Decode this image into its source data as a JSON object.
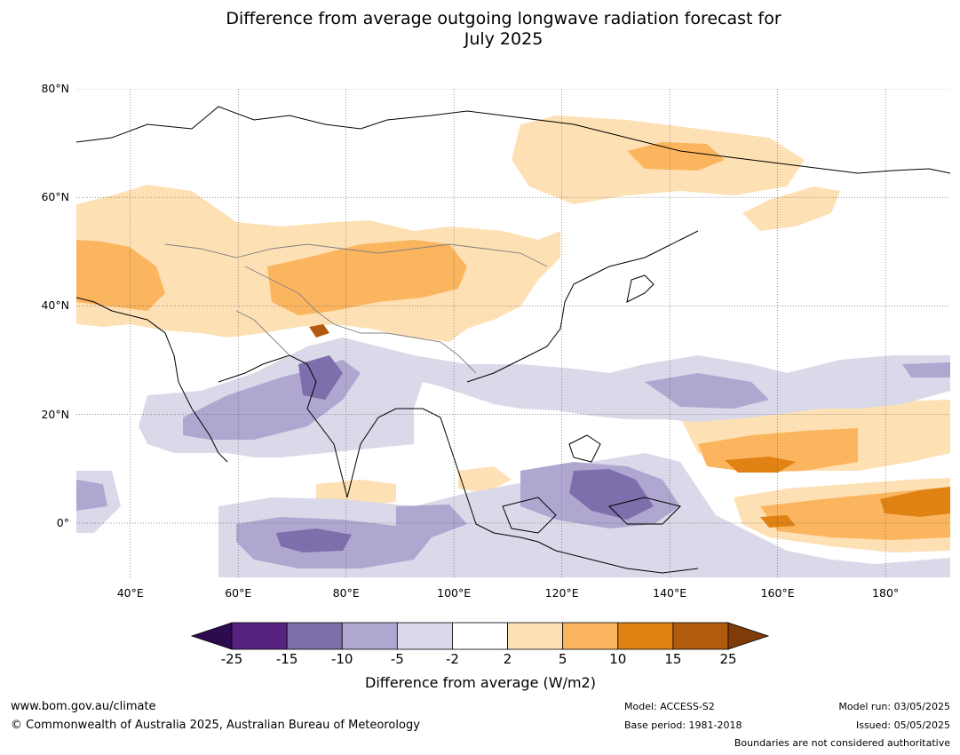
{
  "title": {
    "line1": "Difference from average outgoing longwave radiation forecast for",
    "line2": "July 2025"
  },
  "map": {
    "lat_labels": [
      "80°N",
      "60°N",
      "40°N",
      "20°N",
      "0°"
    ],
    "lon_labels": [
      "40°E",
      "60°E",
      "80°E",
      "100°E",
      "120°E",
      "140°E",
      "160°E",
      "180°"
    ],
    "extent": {
      "lon": [
        30,
        192
      ],
      "lat": [
        -10,
        80
      ]
    }
  },
  "colorbar": {
    "ticks": [
      "-25",
      "-15",
      "-10",
      "-5",
      "-2",
      "2",
      "5",
      "10",
      "15",
      "25"
    ],
    "colors": [
      "#2d0b4e",
      "#572280",
      "#7e6eab",
      "#afa7cf",
      "#d9d9ea",
      "#ffffff",
      "#fee0b5",
      "#fcb55f",
      "#e08214",
      "#b25a0e",
      "#7f3b08"
    ],
    "title": "Difference from average (W/m2)"
  },
  "footer": {
    "website": "www.bom.gov.au/climate",
    "copyright": "© Commonwealth of Australia 2025, Australian Bureau of Meteorology",
    "model": "Model: ACCESS-S2",
    "base_period": "Base period: 1981-2018",
    "model_run": "Model run: 03/05/2025",
    "issued": "Issued: 05/05/2025",
    "disclaimer": "Boundaries are not considered authoritative"
  }
}
